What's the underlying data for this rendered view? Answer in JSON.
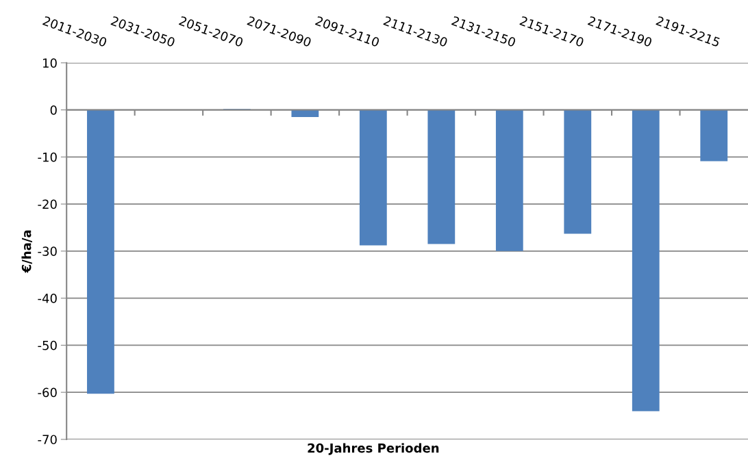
{
  "chart_data": {
    "type": "bar",
    "categories": [
      "2011-2030",
      "2031-2050",
      "2051-2070",
      "2071-2090",
      "2091-2110",
      "2111-2130",
      "2131-2150",
      "2151-2170",
      "2171-2190",
      "2191-2215"
    ],
    "values": [
      -60.3,
      0,
      0.2,
      -1.5,
      -28.8,
      -28.5,
      -30,
      -26.3,
      -64,
      -10.9
    ],
    "color": "#4f81bd",
    "xlabel": "20-Jahres Perioden",
    "ylabel": "€/ha/a",
    "ylim": [
      -70,
      10
    ],
    "yticks": [
      -70,
      -60,
      -50,
      -40,
      -30,
      -20,
      -10,
      0,
      10
    ],
    "grid": "y"
  }
}
